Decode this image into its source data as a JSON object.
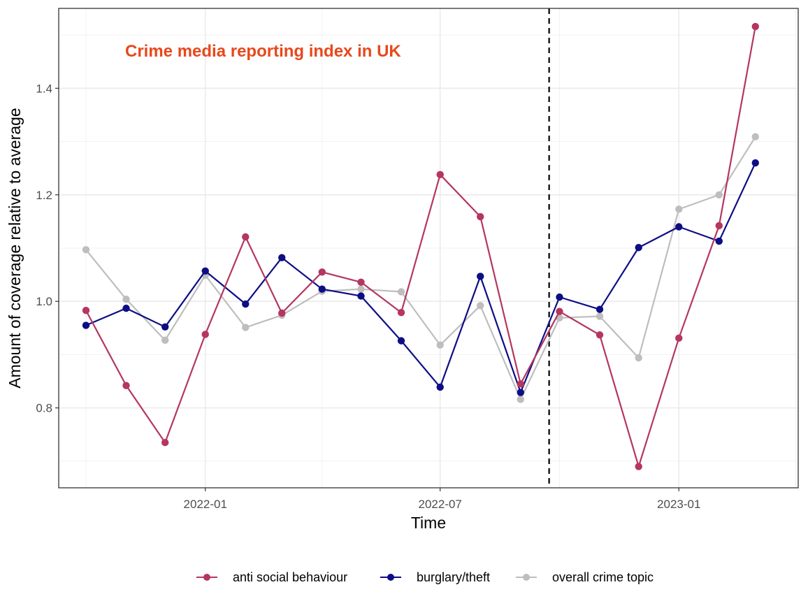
{
  "chart_data": {
    "type": "line",
    "title": "Crime media reporting index in UK",
    "title_color": "#e8481c",
    "xlabel": "Time",
    "ylabel": "Amount of coverage relative to average",
    "x": [
      "2021-10",
      "2021-11",
      "2021-12",
      "2022-01",
      "2022-02",
      "2022-03",
      "2022-04",
      "2022-05",
      "2022-06",
      "2022-07",
      "2022-08",
      "2022-09",
      "2022-10",
      "2022-11",
      "2022-12",
      "2023-01",
      "2023-02",
      "2023-03"
    ],
    "x_tick_labels": [
      "2022-01",
      "2022-07",
      "2023-01"
    ],
    "y_ticks": [
      0.8,
      1.0,
      1.2,
      1.4
    ],
    "y_tick_labels": [
      "0.8",
      "1.0",
      "1.2",
      "1.4"
    ],
    "ylim": [
      0.65,
      1.55
    ],
    "xlim": [
      "2021-09-10",
      "2023-04-03"
    ],
    "vline": "2022-09-23",
    "grid": true,
    "legend_position": "bottom",
    "series": [
      {
        "name": "anti social behaviour",
        "color": "#b5365e",
        "values": [
          0.983,
          0.842,
          0.735,
          0.938,
          1.121,
          0.978,
          1.055,
          1.036,
          0.979,
          1.238,
          1.159,
          0.845,
          0.981,
          0.937,
          0.69,
          0.931,
          1.142,
          1.516
        ]
      },
      {
        "name": "burglary/theft",
        "color": "#0d0d85",
        "values": [
          0.955,
          0.987,
          0.952,
          1.057,
          0.995,
          1.082,
          1.023,
          1.01,
          0.926,
          0.839,
          1.047,
          0.829,
          1.008,
          0.985,
          1.101,
          1.14,
          1.113,
          1.26
        ]
      },
      {
        "name": "overall crime topic",
        "color": "#bebebe",
        "values": [
          1.097,
          1.004,
          0.927,
          1.049,
          0.951,
          0.974,
          1.019,
          1.023,
          1.018,
          0.918,
          0.992,
          0.816,
          0.969,
          0.972,
          0.894,
          1.173,
          1.2,
          1.309
        ]
      }
    ]
  }
}
